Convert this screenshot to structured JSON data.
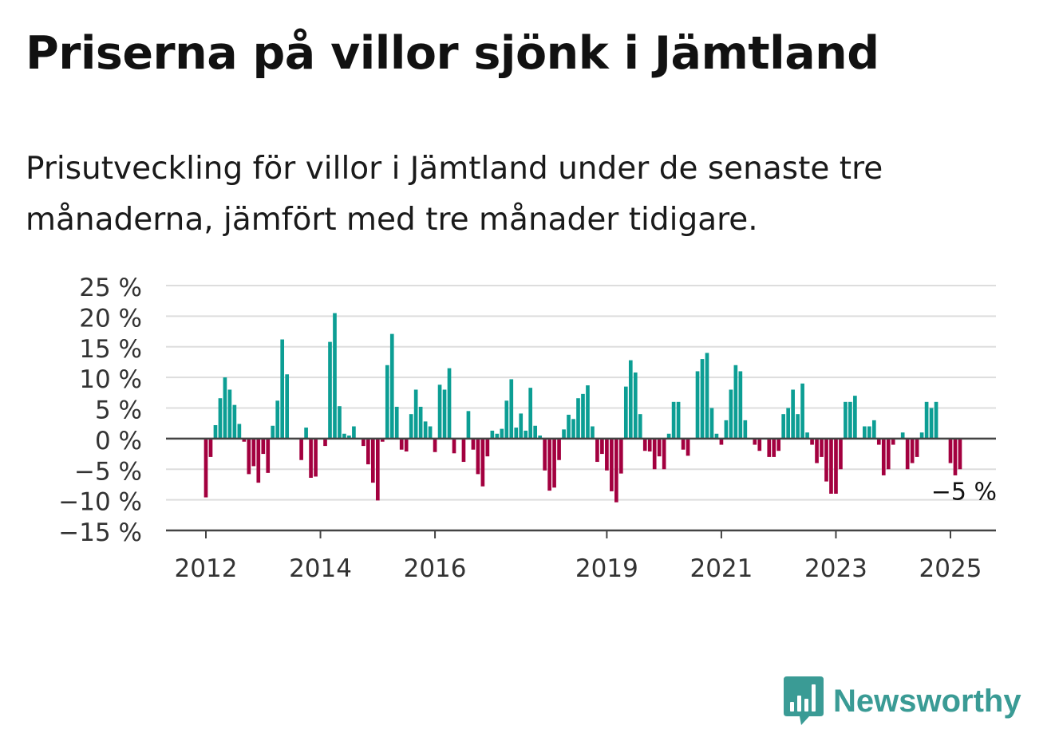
{
  "header": {
    "title": "Priserna på villor sjönk i Jämtland",
    "subtitle": "Prisutveckling för villor i Jämtland under de senaste tre månaderna, jämfört med tre månader tidigare."
  },
  "colors": {
    "positive": "#0c9e94",
    "negative": "#a3003f",
    "grid": "#dddddd",
    "axis": "#444444",
    "brand": "#3a9b95"
  },
  "chart_data": {
    "type": "bar",
    "x_start": "2012-01",
    "frequency": "monthly",
    "values": [
      -9.6,
      -3.0,
      2.2,
      6.6,
      10.0,
      8.0,
      5.5,
      2.4,
      -0.5,
      -5.8,
      -4.5,
      -7.2,
      -2.5,
      -5.6,
      2.1,
      6.2,
      16.2,
      10.5,
      0,
      0,
      -3.5,
      1.8,
      -6.4,
      -6.2,
      0,
      -1.2,
      15.8,
      20.5,
      5.3,
      0.8,
      0.5,
      2.0,
      0,
      -1.2,
      -4.2,
      -7.2,
      -10.1,
      -0.5,
      12.0,
      17.1,
      5.2,
      -1.8,
      -2.1,
      4.0,
      8.0,
      5.2,
      2.8,
      2.0,
      -2.2,
      8.8,
      8.0,
      11.5,
      -2.4,
      0,
      -3.8,
      4.5,
      -1.8,
      -5.8,
      -7.8,
      -2.9,
      1.3,
      0.8,
      1.6,
      6.2,
      9.7,
      1.8,
      4.1,
      1.3,
      8.3,
      2.1,
      0.5,
      -5.2,
      -8.5,
      -8.0,
      -3.5,
      1.5,
      3.9,
      3.2,
      6.6,
      7.3,
      8.7,
      2.0,
      -3.8,
      -2.5,
      -5.2,
      -8.6,
      -10.4,
      -5.7,
      8.5,
      12.8,
      10.8,
      4.0,
      -2.0,
      -2.1,
      -5.0,
      -2.9,
      -5.0,
      0.8,
      6.0,
      6.0,
      -1.8,
      -2.8,
      0,
      11.0,
      13.0,
      14.0,
      5.0,
      0.8,
      -1.0,
      3.0,
      8.0,
      12.0,
      11.0,
      3.0,
      0,
      -1.0,
      -2.0,
      0,
      -3.0,
      -3.0,
      -2.0,
      4.0,
      5.0,
      8.0,
      4.0,
      9.0,
      1.0,
      -1.0,
      -4.0,
      -3.0,
      -7.0,
      -9.0,
      -9.0,
      -5.0,
      6.0,
      6.0,
      7.0,
      0,
      2.0,
      2.0,
      3.0,
      -1.0,
      -6.0,
      -5.0,
      -1.0,
      0,
      1.0,
      -5.0,
      -4.0,
      -3.0,
      1.0,
      6.0,
      5.0,
      6.0,
      0,
      0,
      -4.0,
      -6.0,
      -5.0
    ],
    "x_ticks": [
      "2012",
      "2014",
      "2016",
      "2019",
      "2021",
      "2023",
      "2025"
    ],
    "y_ticks": [
      25,
      20,
      15,
      10,
      5,
      0,
      -5,
      -10,
      -15
    ],
    "y_tick_labels": [
      "25 %",
      "20 %",
      "15 %",
      "10 %",
      "5 %",
      "0 %",
      "−5 %",
      "−10 %",
      "−15 %"
    ],
    "ylim": [
      -15,
      25
    ],
    "last_value_label": "−5 %",
    "grid": true
  },
  "footer": {
    "brand_name": "Newsworthy"
  }
}
